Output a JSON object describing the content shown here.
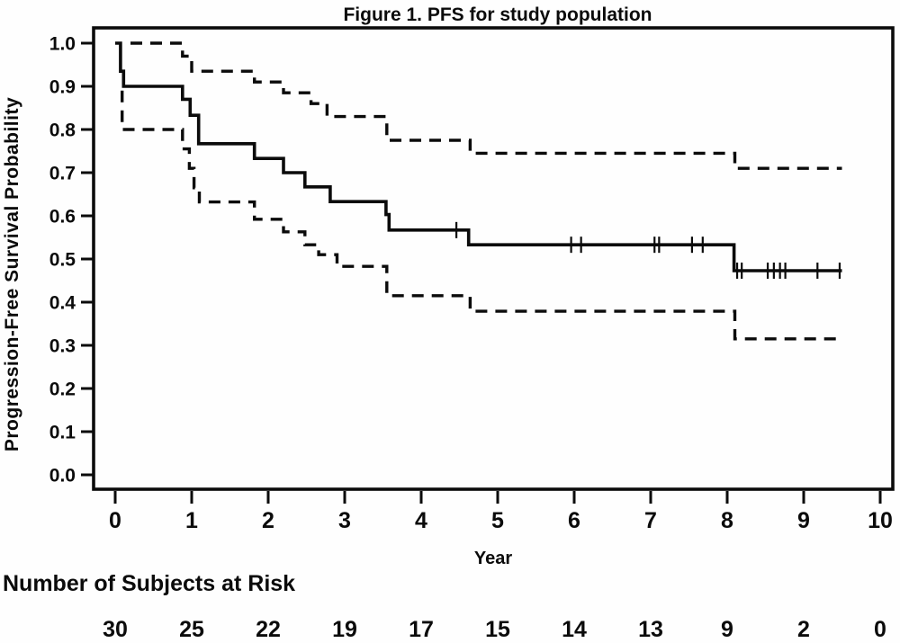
{
  "figure": {
    "background": "#fefefe",
    "line_color": "#0b0b0b"
  },
  "chart_data": {
    "type": "line",
    "subtype": "kaplan-meier-step",
    "title": "Figure 1. PFS for study population",
    "xlabel": "Year",
    "ylabel": "Progression-Free Survival Probability",
    "xlim": [
      0,
      10
    ],
    "ylim": [
      0.0,
      1.0
    ],
    "x_ticks": [
      0,
      1,
      2,
      3,
      4,
      5,
      6,
      7,
      8,
      9,
      10
    ],
    "y_ticks": [
      0.0,
      0.1,
      0.2,
      0.3,
      0.4,
      0.5,
      0.6,
      0.7,
      0.8,
      0.9,
      1.0
    ],
    "grid": false,
    "legend": "none",
    "series": [
      {
        "name": "pfs-estimate",
        "style": "solid",
        "points": [
          [
            0,
            1.0
          ],
          [
            0.07,
            1.0
          ],
          [
            0.07,
            0.935
          ],
          [
            0.11,
            0.935
          ],
          [
            0.11,
            0.9
          ],
          [
            0.88,
            0.9
          ],
          [
            0.88,
            0.87
          ],
          [
            0.98,
            0.87
          ],
          [
            0.98,
            0.833
          ],
          [
            1.09,
            0.833
          ],
          [
            1.09,
            0.767
          ],
          [
            1.82,
            0.767
          ],
          [
            1.82,
            0.733
          ],
          [
            2.2,
            0.733
          ],
          [
            2.2,
            0.7
          ],
          [
            2.48,
            0.7
          ],
          [
            2.48,
            0.667
          ],
          [
            2.81,
            0.667
          ],
          [
            2.81,
            0.633
          ],
          [
            3.54,
            0.633
          ],
          [
            3.54,
            0.603
          ],
          [
            3.58,
            0.603
          ],
          [
            3.58,
            0.567
          ],
          [
            4.62,
            0.567
          ],
          [
            4.62,
            0.533
          ],
          [
            8.09,
            0.533
          ],
          [
            8.09,
            0.473
          ],
          [
            9.5,
            0.473
          ]
        ]
      },
      {
        "name": "upper-95-ci",
        "style": "dashed",
        "points": [
          [
            0.2,
            1.0
          ],
          [
            0.88,
            1.0
          ],
          [
            0.88,
            0.97
          ],
          [
            1.0,
            0.97
          ],
          [
            1.0,
            0.935
          ],
          [
            1.82,
            0.935
          ],
          [
            1.82,
            0.91
          ],
          [
            2.2,
            0.91
          ],
          [
            2.2,
            0.885
          ],
          [
            2.56,
            0.885
          ],
          [
            2.56,
            0.86
          ],
          [
            2.77,
            0.86
          ],
          [
            2.77,
            0.83
          ],
          [
            3.55,
            0.83
          ],
          [
            3.55,
            0.775
          ],
          [
            4.64,
            0.775
          ],
          [
            4.64,
            0.745
          ],
          [
            8.1,
            0.745
          ],
          [
            8.1,
            0.71
          ],
          [
            9.5,
            0.71
          ]
        ]
      },
      {
        "name": "lower-95-ci",
        "style": "dashed",
        "points": [
          [
            0.09,
            0.89
          ],
          [
            0.09,
            0.8
          ],
          [
            0.88,
            0.8
          ],
          [
            0.88,
            0.755
          ],
          [
            0.97,
            0.755
          ],
          [
            0.97,
            0.71
          ],
          [
            1.03,
            0.71
          ],
          [
            1.03,
            0.665
          ],
          [
            1.1,
            0.665
          ],
          [
            1.1,
            0.632
          ],
          [
            1.82,
            0.632
          ],
          [
            1.82,
            0.592
          ],
          [
            2.2,
            0.592
          ],
          [
            2.2,
            0.563
          ],
          [
            2.48,
            0.563
          ],
          [
            2.48,
            0.533
          ],
          [
            2.66,
            0.533
          ],
          [
            2.66,
            0.51
          ],
          [
            2.9,
            0.51
          ],
          [
            2.9,
            0.483
          ],
          [
            3.55,
            0.483
          ],
          [
            3.55,
            0.415
          ],
          [
            4.64,
            0.415
          ],
          [
            4.64,
            0.379
          ],
          [
            8.1,
            0.379
          ],
          [
            8.1,
            0.315
          ],
          [
            9.5,
            0.315
          ]
        ]
      }
    ],
    "censor_marks": [
      [
        4.46,
        0.567
      ],
      [
        5.96,
        0.533
      ],
      [
        6.09,
        0.533
      ],
      [
        7.05,
        0.533
      ],
      [
        7.11,
        0.533
      ],
      [
        7.54,
        0.533
      ],
      [
        7.68,
        0.533
      ],
      [
        8.13,
        0.473
      ],
      [
        8.19,
        0.473
      ],
      [
        8.53,
        0.473
      ],
      [
        8.61,
        0.473
      ],
      [
        8.69,
        0.473
      ],
      [
        8.76,
        0.473
      ],
      [
        9.18,
        0.473
      ],
      [
        9.47,
        0.473
      ]
    ],
    "risk_table": {
      "label": "Number of Subjects at Risk",
      "times": [
        0,
        1,
        2,
        3,
        4,
        5,
        6,
        7,
        8,
        9,
        10
      ],
      "counts": [
        30,
        25,
        22,
        19,
        17,
        15,
        14,
        13,
        9,
        2,
        0
      ]
    }
  }
}
